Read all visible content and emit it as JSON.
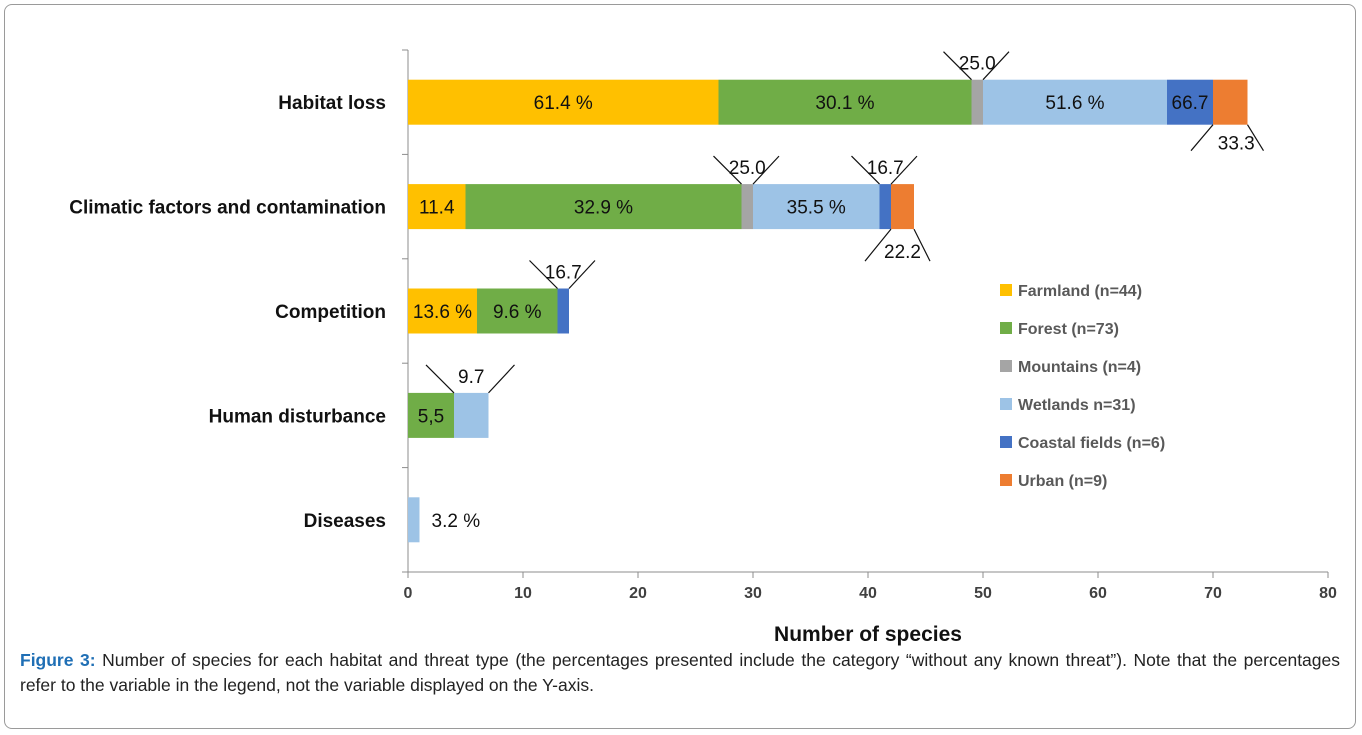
{
  "chart_data": {
    "type": "bar",
    "orientation": "horizontal",
    "stacked": true,
    "categories": [
      "Habitat loss",
      "Climatic factors and contamination",
      "Competition",
      "Human disturbance",
      "Diseases"
    ],
    "series": [
      {
        "name": "Farmland (n=44)",
        "color": "#FFC000",
        "values": [
          27,
          5,
          6,
          0,
          0
        ],
        "labels": [
          "61.4 %",
          "11.4",
          "13.6 %",
          "",
          ""
        ]
      },
      {
        "name": "Forest (n=73)",
        "color": "#70AD47",
        "values": [
          22,
          24,
          7,
          4,
          0
        ],
        "labels": [
          "30.1 %",
          "32.9 %",
          "9.6 %",
          "5,5",
          ""
        ]
      },
      {
        "name": "Mountains (n=4)",
        "color": "#A5A5A5",
        "values": [
          1,
          1,
          0,
          0,
          0
        ],
        "labels": [
          "25.0",
          "25.0",
          "",
          "",
          ""
        ]
      },
      {
        "name": "Wetlands n=31)",
        "color": "#9DC3E6",
        "values": [
          16,
          11,
          0,
          3,
          1
        ],
        "labels": [
          "51.6 %",
          "35.5 %",
          "",
          "9.7",
          "3.2 %"
        ]
      },
      {
        "name": "Coastal fields (n=6)",
        "color": "#4472C4",
        "values": [
          4,
          1,
          1,
          0,
          0
        ],
        "labels": [
          "66.7",
          "16.7",
          "16.7",
          "",
          ""
        ]
      },
      {
        "name": "Urban (n=9)",
        "color": "#ED7D31",
        "values": [
          3,
          2,
          0,
          0,
          0
        ],
        "labels": [
          "33.3",
          "22.2",
          "",
          "",
          ""
        ]
      }
    ],
    "xlabel": "Number of species",
    "xlim": [
      0,
      80
    ],
    "xticks": [
      0,
      10,
      20,
      30,
      40,
      50,
      60,
      70,
      80
    ],
    "grid": false,
    "legend_position": "right"
  },
  "caption": {
    "label": "Figure 3:",
    "text": " Number of species for each habitat and threat type (the percentages presented include the category “without any known threat”). Note that the percentages refer to the variable in the legend, not the variable displayed on the Y-axis."
  }
}
